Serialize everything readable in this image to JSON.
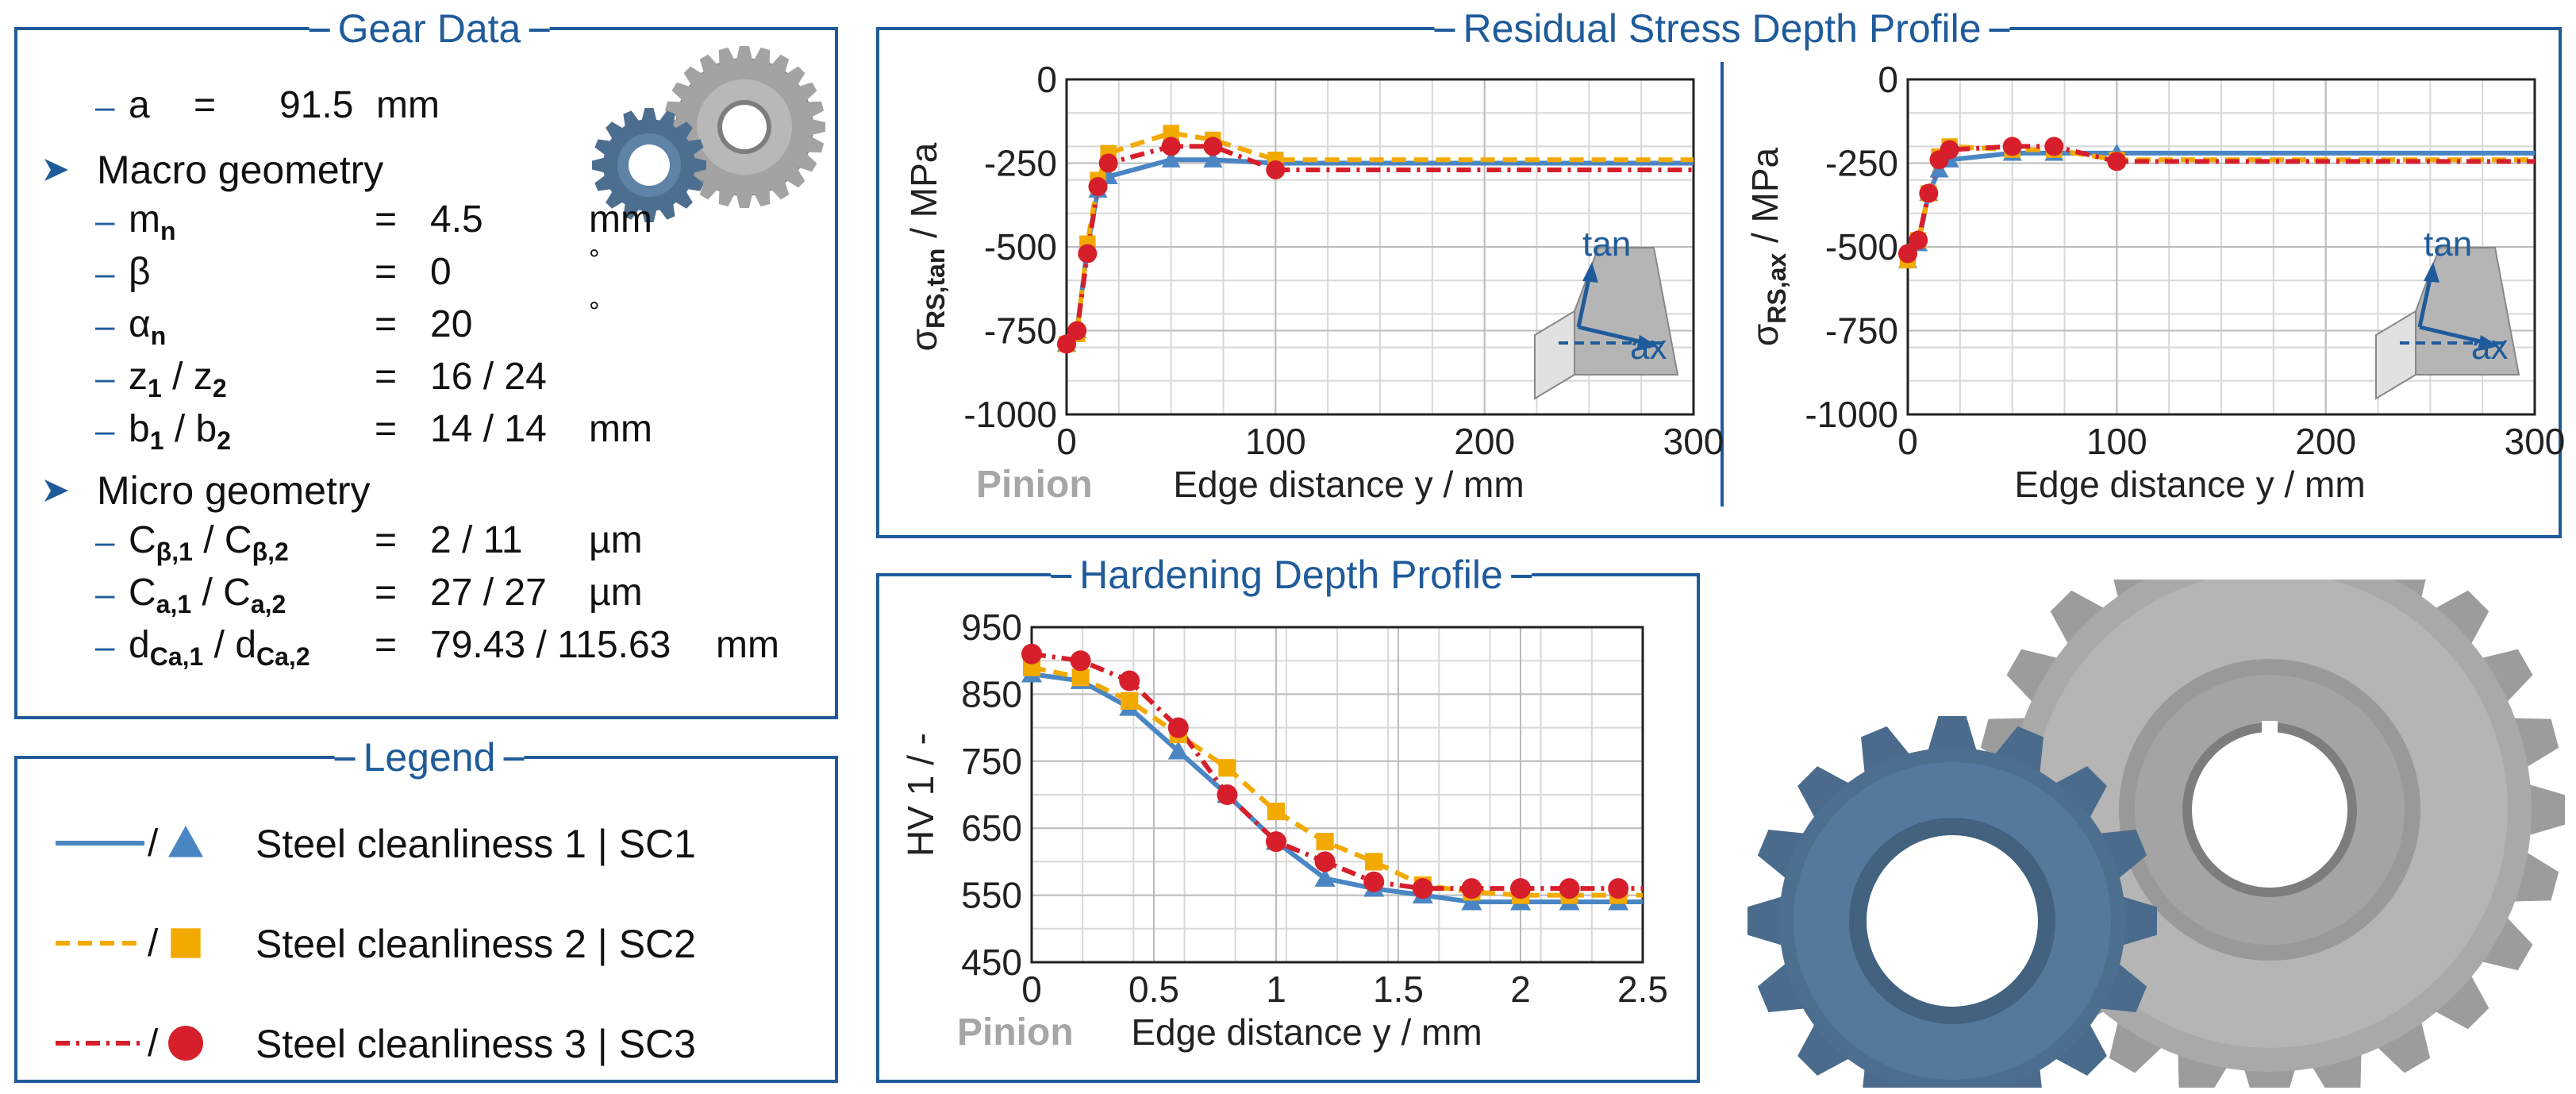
{
  "gear_data": {
    "title": "Gear Data",
    "center_distance": {
      "label": "a",
      "eq": "=",
      "value": "91.5",
      "unit": "mm"
    },
    "macro": {
      "title": "Macro geometry",
      "rows": [
        {
          "sym": "m",
          "sub": "n",
          "sym2": "",
          "sub2": "",
          "eq": "=",
          "value": "4.5",
          "unit": "mm"
        },
        {
          "sym": "β",
          "sub": "",
          "sym2": "",
          "sub2": "",
          "eq": "=",
          "value": "0",
          "unit": "°"
        },
        {
          "sym": "α",
          "sub": "n",
          "sym2": "",
          "sub2": "",
          "eq": "=",
          "value": "20",
          "unit": "°"
        },
        {
          "sym": "z",
          "sub": "1",
          "sym2": "z",
          "sub2": "2",
          "eq": "=",
          "value": "16 / 24",
          "unit": ""
        },
        {
          "sym": "b",
          "sub": "1",
          "sym2": "b",
          "sub2": "2",
          "eq": "=",
          "value": "14 / 14",
          "unit": "mm"
        }
      ]
    },
    "micro": {
      "title": "Micro geometry",
      "rows": [
        {
          "sym": "C",
          "sub": "β,1",
          "sym2": "C",
          "sub2": "β,2",
          "eq": "=",
          "value": "2 / 11",
          "unit": "µm"
        },
        {
          "sym": "C",
          "sub": "a,1",
          "sym2": "C",
          "sub2": "a,2",
          "eq": "=",
          "value": "27 / 27",
          "unit": "µm"
        },
        {
          "sym": "d",
          "sub": "Ca,1",
          "sym2": "d",
          "sub2": "Ca,2",
          "eq": "=",
          "value": "79.43 / 115.63",
          "unit": "mm"
        }
      ]
    }
  },
  "legend": {
    "title": "Legend",
    "items": [
      {
        "label": "Steel cleanliness 1 | SC1",
        "color": "#4a86c4",
        "marker": "triangle",
        "dash": "solid"
      },
      {
        "label": "Steel cleanliness 2 | SC2",
        "color": "#f2a900",
        "marker": "square",
        "dash": "dashed"
      },
      {
        "label": "Steel cleanliness 3 | SC3",
        "color": "#d61f2b",
        "marker": "circle",
        "dash": "dash-dot"
      }
    ]
  },
  "rs_panel": {
    "title": "Residual Stress Depth Profile"
  },
  "hd_panel": {
    "title": "Hardening Depth Profile"
  },
  "colors": {
    "accent": "#1f5b9a",
    "gear_blue": "#4d6f8f",
    "gear_gray": "#9a9a9a"
  },
  "chart_data": [
    {
      "type": "line",
      "panel_note": "Pinion",
      "xlabel": "Edge distance y / mm",
      "ylabel_main": "σ",
      "ylabel_sub": "RS,tan",
      "ylabel_unit": " / MPa",
      "xlim": [
        0,
        300
      ],
      "ylim": [
        -1000,
        0
      ],
      "xticks": [
        0,
        100,
        200,
        300
      ],
      "yticks": [
        0,
        -250,
        -500,
        -750,
        -1000
      ],
      "grid": true,
      "inset": {
        "label1": "tan",
        "label2": "ax"
      },
      "series": [
        {
          "name": "SC1",
          "x": [
            0,
            5,
            10,
            15,
            20,
            50,
            70,
            100,
            300
          ],
          "y": [
            -790,
            -750,
            -500,
            -330,
            -290,
            -240,
            -240,
            -250,
            -250
          ]
        },
        {
          "name": "SC2",
          "x": [
            0,
            5,
            10,
            15,
            20,
            50,
            70,
            100,
            300
          ],
          "y": [
            -790,
            -760,
            -490,
            -300,
            -220,
            -160,
            -180,
            -240,
            -240
          ]
        },
        {
          "name": "SC3",
          "x": [
            0,
            5,
            10,
            15,
            20,
            50,
            70,
            100,
            300
          ],
          "y": [
            -790,
            -750,
            -520,
            -320,
            -250,
            -200,
            -200,
            -270,
            -270
          ]
        }
      ]
    },
    {
      "type": "line",
      "panel_note": "",
      "xlabel": "Edge distance y / mm",
      "ylabel_main": "σ",
      "ylabel_sub": "RS,ax",
      "ylabel_unit": " / MPa",
      "xlim": [
        0,
        300
      ],
      "ylim": [
        -1000,
        0
      ],
      "xticks": [
        0,
        100,
        200,
        300
      ],
      "yticks": [
        0,
        -250,
        -500,
        -750,
        -1000
      ],
      "grid": true,
      "inset": {
        "label1": "tan",
        "label2": "ax"
      },
      "series": [
        {
          "name": "SC1",
          "x": [
            0,
            5,
            10,
            15,
            20,
            50,
            70,
            100,
            300
          ],
          "y": [
            -540,
            -490,
            -340,
            -270,
            -240,
            -220,
            -220,
            -220,
            -220
          ]
        },
        {
          "name": "SC2",
          "x": [
            0,
            5,
            10,
            15,
            20,
            50,
            70,
            100,
            300
          ],
          "y": [
            -540,
            -480,
            -340,
            -230,
            -200,
            -210,
            -210,
            -240,
            -240
          ]
        },
        {
          "name": "SC3",
          "x": [
            0,
            5,
            10,
            15,
            20,
            50,
            70,
            100,
            300
          ],
          "y": [
            -520,
            -480,
            -340,
            -240,
            -210,
            -200,
            -200,
            -245,
            -245
          ]
        }
      ]
    },
    {
      "type": "line",
      "panel_note": "Pinion",
      "xlabel": "Edge distance y / mm",
      "ylabel_main": "HV 1 / -",
      "ylabel_sub": "",
      "ylabel_unit": "",
      "xlim": [
        0,
        2.5
      ],
      "ylim": [
        450,
        950
      ],
      "xticks": [
        0,
        0.5,
        1,
        1.5,
        2,
        2.5
      ],
      "xticklabels": [
        "0",
        "0.5",
        "1",
        "1.5",
        "2",
        "2.5"
      ],
      "yticks": [
        450,
        550,
        650,
        750,
        850,
        950
      ],
      "grid": true,
      "series": [
        {
          "name": "SC1",
          "x": [
            0,
            0.2,
            0.4,
            0.6,
            0.8,
            1.0,
            1.2,
            1.4,
            1.6,
            1.8,
            2.0,
            2.2,
            2.4,
            2.5
          ],
          "y": [
            880,
            870,
            830,
            765,
            700,
            630,
            575,
            560,
            550,
            540,
            540,
            540,
            540,
            540
          ]
        },
        {
          "name": "SC2",
          "x": [
            0,
            0.2,
            0.4,
            0.6,
            0.8,
            1.0,
            1.2,
            1.4,
            1.6,
            1.8,
            2.0,
            2.2,
            2.4,
            2.5
          ],
          "y": [
            890,
            875,
            840,
            790,
            740,
            675,
            630,
            600,
            565,
            555,
            550,
            550,
            550,
            550
          ]
        },
        {
          "name": "SC3",
          "x": [
            0,
            0.2,
            0.4,
            0.6,
            0.8,
            1.0,
            1.2,
            1.4,
            1.6,
            1.8,
            2.0,
            2.2,
            2.4,
            2.5
          ],
          "y": [
            910,
            900,
            870,
            800,
            700,
            630,
            600,
            570,
            560,
            560,
            560,
            560,
            560,
            560
          ]
        }
      ]
    }
  ]
}
